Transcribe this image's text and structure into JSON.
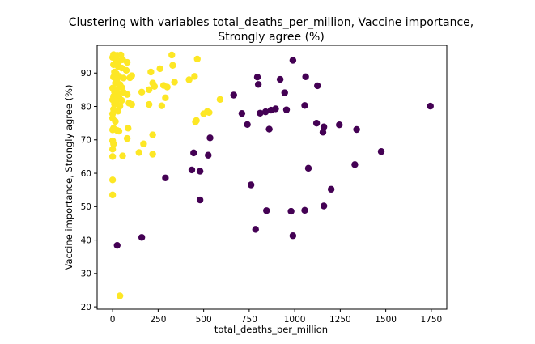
{
  "chart_data": {
    "type": "scatter",
    "title_line1": "Clustering with variables total_deaths_per_million, Vaccine importance,",
    "title_line2": "Strongly agree (%)",
    "xlabel": "total_deaths_per_million",
    "ylabel": "Vaccine importance, Strongly agree (%)",
    "xlim": [
      -85,
      1835
    ],
    "ylim": [
      19.3,
      98.3
    ],
    "xticks": [
      0,
      250,
      500,
      750,
      1000,
      1250,
      1500,
      1750
    ],
    "yticks": [
      20,
      30,
      40,
      50,
      60,
      70,
      80,
      90
    ],
    "grid": false,
    "legend": false,
    "colors": {
      "cluster_0": "#440154",
      "cluster_1": "#fde725"
    },
    "series": [
      {
        "cluster": 1,
        "color": "#fde725",
        "points": [
          [
            0,
            94.7
          ],
          [
            5,
            95.5
          ],
          [
            15,
            94.3
          ],
          [
            25,
            95.3
          ],
          [
            35,
            93.5
          ],
          [
            45,
            95.4
          ],
          [
            55,
            94.0
          ],
          [
            80,
            93.2
          ],
          [
            5,
            92.5
          ],
          [
            15,
            92.8
          ],
          [
            30,
            92.0
          ],
          [
            50,
            91.5
          ],
          [
            75,
            90.8
          ],
          [
            10,
            90.3
          ],
          [
            20,
            89.8
          ],
          [
            35,
            89.0
          ],
          [
            5,
            88.8
          ],
          [
            25,
            88.2
          ],
          [
            60,
            88.5
          ],
          [
            95,
            88.6
          ],
          [
            105,
            89.2
          ],
          [
            15,
            87.0
          ],
          [
            40,
            86.6
          ],
          [
            0,
            85.5
          ],
          [
            20,
            85.0
          ],
          [
            50,
            85.7
          ],
          [
            10,
            84.4
          ],
          [
            30,
            84.0
          ],
          [
            60,
            84.2
          ],
          [
            80,
            83.6
          ],
          [
            5,
            83.0
          ],
          [
            35,
            82.8
          ],
          [
            0,
            82.0
          ],
          [
            20,
            81.6
          ],
          [
            50,
            81.8
          ],
          [
            90,
            81.0
          ],
          [
            105,
            80.6
          ],
          [
            10,
            80.7
          ],
          [
            40,
            80.1
          ],
          [
            5,
            79.2
          ],
          [
            30,
            78.6
          ],
          [
            0,
            77.8
          ],
          [
            0,
            76.5
          ],
          [
            15,
            75.5
          ],
          [
            5,
            73.5
          ],
          [
            0,
            73.0
          ],
          [
            25,
            72.8
          ],
          [
            35,
            72.6
          ],
          [
            0,
            69.7
          ],
          [
            5,
            68.8
          ],
          [
            0,
            67.2
          ],
          [
            80,
            70.4
          ],
          [
            85,
            73.5
          ],
          [
            0,
            65.0
          ],
          [
            55,
            65.2
          ],
          [
            0,
            58.0
          ],
          [
            0,
            53.5
          ],
          [
            40,
            23.3
          ],
          [
            325,
            95.4
          ],
          [
            420,
            88.0
          ],
          [
            450,
            89.0
          ],
          [
            465,
            94.2
          ],
          [
            330,
            92.3
          ],
          [
            210,
            90.3
          ],
          [
            260,
            91.3
          ],
          [
            220,
            87.0
          ],
          [
            230,
            86.0
          ],
          [
            280,
            86.3
          ],
          [
            300,
            85.8
          ],
          [
            340,
            87.3
          ],
          [
            160,
            84.3
          ],
          [
            200,
            85.0
          ],
          [
            200,
            80.6
          ],
          [
            270,
            80.2
          ],
          [
            290,
            82.6
          ],
          [
            590,
            82.1
          ],
          [
            500,
            77.8
          ],
          [
            520,
            78.5
          ],
          [
            530,
            78.2
          ],
          [
            460,
            75.8
          ],
          [
            455,
            75.4
          ],
          [
            220,
            71.5
          ],
          [
            170,
            68.8
          ],
          [
            145,
            66.2
          ],
          [
            220,
            65.7
          ]
        ]
      },
      {
        "cluster": 0,
        "color": "#440154",
        "points": [
          [
            990,
            93.8
          ],
          [
            795,
            88.8
          ],
          [
            800,
            86.6
          ],
          [
            920,
            88.1
          ],
          [
            1060,
            88.9
          ],
          [
            1125,
            86.2
          ],
          [
            665,
            83.4
          ],
          [
            945,
            84.1
          ],
          [
            1055,
            80.3
          ],
          [
            710,
            77.9
          ],
          [
            810,
            78.0
          ],
          [
            840,
            78.4
          ],
          [
            870,
            78.9
          ],
          [
            895,
            79.3
          ],
          [
            955,
            79.0
          ],
          [
            740,
            74.6
          ],
          [
            860,
            73.2
          ],
          [
            1120,
            75.0
          ],
          [
            1160,
            73.9
          ],
          [
            1245,
            74.5
          ],
          [
            1340,
            73.1
          ],
          [
            1155,
            72.3
          ],
          [
            535,
            70.6
          ],
          [
            1745,
            80.1
          ],
          [
            1475,
            66.5
          ],
          [
            445,
            66.1
          ],
          [
            525,
            65.4
          ],
          [
            1330,
            62.6
          ],
          [
            1075,
            61.5
          ],
          [
            435,
            61.0
          ],
          [
            480,
            60.6
          ],
          [
            290,
            58.6
          ],
          [
            760,
            56.5
          ],
          [
            1200,
            55.2
          ],
          [
            480,
            52.0
          ],
          [
            1160,
            50.2
          ],
          [
            845,
            48.8
          ],
          [
            980,
            48.6
          ],
          [
            1055,
            48.9
          ],
          [
            785,
            43.2
          ],
          [
            990,
            41.3
          ],
          [
            160,
            40.8
          ],
          [
            25,
            38.4
          ]
        ]
      }
    ]
  }
}
